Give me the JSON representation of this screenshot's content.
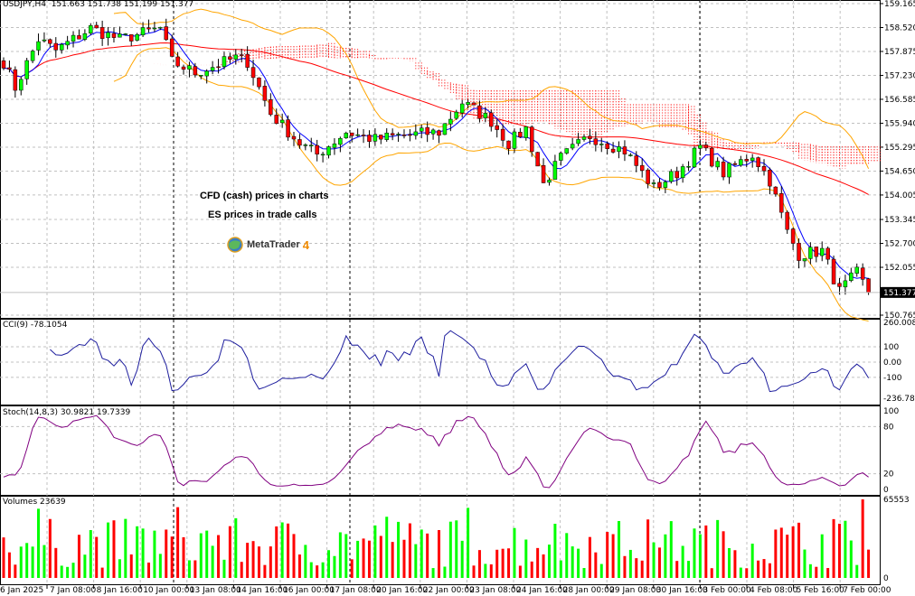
{
  "header": {
    "symbol": "USDJPY,H4",
    "ohlc": "151.663 151.738 151.199 151.377"
  },
  "notes": {
    "line1": "CFD (cash) prices in charts",
    "line2": "ES prices in trade calls"
  },
  "logo": {
    "text": "MetaTrader",
    "version": "4"
  },
  "indicators": {
    "cci_label": "CCI(9) -78.1054",
    "stoch_label": "Stoch(14,8,3) 30.9821 19.7339",
    "volume_label": "Volumes 23639"
  },
  "colors": {
    "bull": "#00ff00",
    "bear": "#ff0000",
    "bollinger": "#ffa500",
    "fast_ma": "#0000ff",
    "slow_ma": "#ff0000",
    "cloud": "#ff0000",
    "cci": "#1e1e9e",
    "stoch": "#800080"
  },
  "chart_data": {
    "type": "candlestick",
    "title": "USDJPY,H4",
    "timeframe": "H4",
    "price_axis": {
      "range": [
        150.765,
        159.165
      ],
      "ticks": [
        "159.165",
        "158.520",
        "157.875",
        "157.230",
        "156.585",
        "155.940",
        "155.295",
        "154.650",
        "154.005",
        "153.345",
        "152.700",
        "152.055",
        "150.765"
      ],
      "current_price": "151.377"
    },
    "time_axis": {
      "ticks": [
        "6 Jan 2025",
        "7 Jan 08:00",
        "8 Jan 16:00",
        "10 Jan 00:00",
        "13 Jan 08:00",
        "14 Jan 16:00",
        "16 Jan 00:00",
        "17 Jan 08:00",
        "20 Jan 16:00",
        "22 Jan 00:00",
        "23 Jan 08:00",
        "24 Jan 16:00",
        "28 Jan 00:00",
        "29 Jan 08:00",
        "30 Jan 16:00",
        "3 Feb 00:00",
        "4 Feb 08:00",
        "5 Feb 16:00",
        "7 Feb 00:00"
      ]
    },
    "approx_close_path": [
      {
        "bar": 0,
        "close": 157.6
      },
      {
        "bar": 2,
        "close": 156.9
      },
      {
        "bar": 6,
        "close": 158.2
      },
      {
        "bar": 9,
        "close": 157.9
      },
      {
        "bar": 15,
        "close": 158.5
      },
      {
        "bar": 20,
        "close": 158.2
      },
      {
        "bar": 27,
        "close": 158.5
      },
      {
        "bar": 29,
        "close": 157.6
      },
      {
        "bar": 33,
        "close": 157.3
      },
      {
        "bar": 40,
        "close": 157.7
      },
      {
        "bar": 42,
        "close": 157.6
      },
      {
        "bar": 46,
        "close": 156.2
      },
      {
        "bar": 51,
        "close": 155.4
      },
      {
        "bar": 54,
        "close": 155.1
      },
      {
        "bar": 59,
        "close": 155.7
      },
      {
        "bar": 64,
        "close": 155.5
      },
      {
        "bar": 68,
        "close": 155.6
      },
      {
        "bar": 75,
        "close": 155.7
      },
      {
        "bar": 79,
        "close": 156.5
      },
      {
        "bar": 84,
        "close": 156.0
      },
      {
        "bar": 87,
        "close": 155.4
      },
      {
        "bar": 90,
        "close": 155.8
      },
      {
        "bar": 93,
        "close": 154.3
      },
      {
        "bar": 96,
        "close": 155.0
      },
      {
        "bar": 101,
        "close": 155.6
      },
      {
        "bar": 107,
        "close": 155.2
      },
      {
        "bar": 112,
        "close": 154.2
      },
      {
        "bar": 116,
        "close": 154.6
      },
      {
        "bar": 120,
        "close": 155.3
      },
      {
        "bar": 124,
        "close": 154.6
      },
      {
        "bar": 129,
        "close": 155.1
      },
      {
        "bar": 132,
        "close": 154.4
      },
      {
        "bar": 135,
        "close": 153.0
      },
      {
        "bar": 137,
        "close": 152.4
      },
      {
        "bar": 141,
        "close": 152.5
      },
      {
        "bar": 144,
        "close": 151.4
      },
      {
        "bar": 147,
        "close": 151.9
      },
      {
        "bar": 149,
        "close": 151.377
      }
    ],
    "cci": {
      "name": "CCI(9)",
      "last": -78.1054,
      "range": [
        -236.7829,
        260.0084
      ],
      "levels": [
        100,
        0,
        -100
      ],
      "tick_labels": [
        "260.0084",
        "100",
        "0.00",
        "-100",
        "-236.7829"
      ]
    },
    "stochastic": {
      "name": "Stoch(14,8,3)",
      "main": 30.9821,
      "signal": 19.7339,
      "range": [
        0,
        100
      ],
      "levels": [
        80,
        20
      ],
      "tick_labels": [
        "100",
        "80",
        "20",
        "0"
      ]
    },
    "volume": {
      "last": 23639,
      "range": [
        0,
        65553
      ],
      "max_value": 65553,
      "tick_labels": [
        "65553",
        "0"
      ]
    }
  }
}
